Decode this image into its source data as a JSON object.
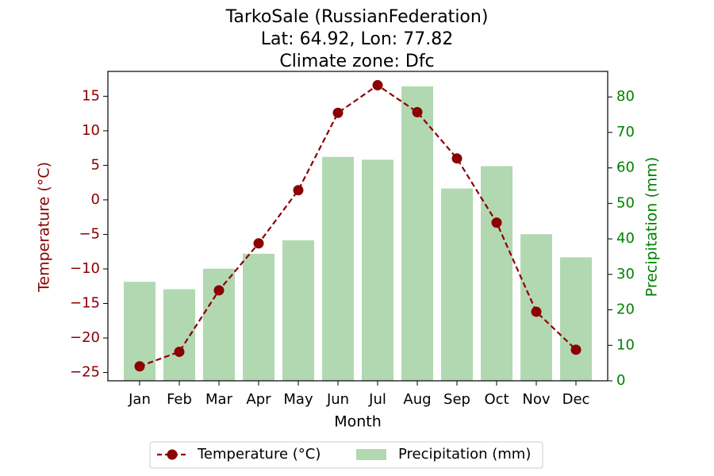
{
  "chart_data": {
    "type": "bar+line",
    "title_lines": [
      "TarkoSale (RussianFederation)",
      "Lat: 64.92, Lon: 77.82",
      "Climate zone: Dfc"
    ],
    "xlabel": "Month",
    "ylabel_left": "Temperature (°C)",
    "ylabel_right": "Precipitation (mm)",
    "categories": [
      "Jan",
      "Feb",
      "Mar",
      "Apr",
      "May",
      "Jun",
      "Jul",
      "Aug",
      "Sep",
      "Oct",
      "Nov",
      "Dec"
    ],
    "series": [
      {
        "name": "Temperature (°C)",
        "type": "line",
        "axis": "left",
        "color": "#8b0000",
        "values": [
          -24.1,
          -22.0,
          -13.1,
          -6.3,
          1.4,
          12.6,
          16.6,
          12.7,
          6.0,
          -3.3,
          -16.2,
          -21.7
        ]
      },
      {
        "name": "Precipitation (mm)",
        "type": "bar",
        "axis": "right",
        "color": "#b2d8b2",
        "values": [
          27.9,
          25.8,
          31.6,
          35.8,
          39.6,
          63.1,
          62.3,
          83.0,
          54.2,
          60.5,
          41.3,
          34.8
        ]
      }
    ],
    "y_left": {
      "lim": [
        -26.2,
        18.6
      ],
      "ticks": [
        -25,
        -20,
        -15,
        -10,
        -5,
        0,
        5,
        10,
        15
      ],
      "tick_labels": [
        "−25",
        "−20",
        "−15",
        "−10",
        "−5",
        "0",
        "5",
        "10",
        "15"
      ],
      "color": "#8b0000"
    },
    "y_right": {
      "lim": [
        0,
        87.2
      ],
      "ticks": [
        0,
        10,
        20,
        30,
        40,
        50,
        60,
        70,
        80
      ],
      "tick_labels": [
        "0",
        "10",
        "20",
        "30",
        "40",
        "50",
        "60",
        "70",
        "80"
      ],
      "color": "#008000"
    },
    "legend": {
      "placement": "bottom-center",
      "entries": [
        "Temperature (°C)",
        "Precipitation (mm)"
      ]
    },
    "grid": false
  }
}
